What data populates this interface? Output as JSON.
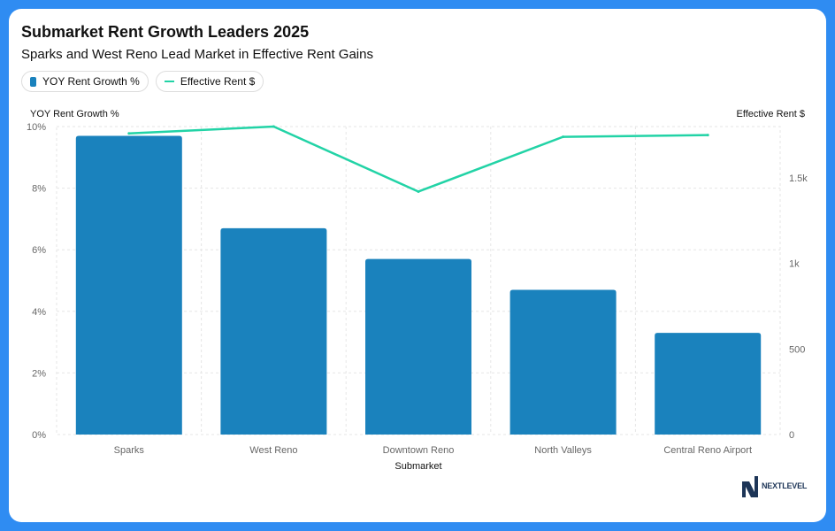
{
  "header": {
    "title": "Submarket Rent Growth Leaders 2025",
    "subtitle": "Sparks and West Reno Lead Market in Effective Rent Gains"
  },
  "legend": {
    "bar_label": "YOY Rent Growth %",
    "line_label": "Effective Rent $"
  },
  "logo": {
    "text": "NEXTLEVEL"
  },
  "colors": {
    "bar": "#1a82bd",
    "line": "#22d3a6",
    "frame": "#2f8cf2"
  },
  "chart_data": {
    "type": "bar",
    "categories": [
      "Sparks",
      "West Reno",
      "Downtown Reno",
      "North Valleys",
      "Central Reno Airport"
    ],
    "series": [
      {
        "name": "YOY Rent Growth %",
        "type": "bar",
        "axis": "left",
        "values": [
          9.7,
          6.7,
          5.7,
          4.7,
          3.3
        ]
      },
      {
        "name": "Effective Rent $",
        "type": "line",
        "axis": "right",
        "values": [
          1760,
          1800,
          1420,
          1740,
          1750
        ]
      }
    ],
    "xlabel": "Submarket",
    "ylabel": "YOY Rent Growth %",
    "ylabel_right": "Effective Rent $",
    "ylim": [
      0,
      10
    ],
    "ylim_right": [
      0,
      1800
    ],
    "yticks": [
      0,
      2,
      4,
      6,
      8,
      10
    ],
    "yticks_right": [
      0,
      500,
      1000,
      1500
    ],
    "ytick_labels": [
      "0%",
      "2%",
      "4%",
      "6%",
      "8%",
      "10%"
    ],
    "ytick_labels_right": [
      "0",
      "500",
      "1k",
      "1.5k"
    ],
    "grid": true,
    "legend_position": "top-left"
  }
}
